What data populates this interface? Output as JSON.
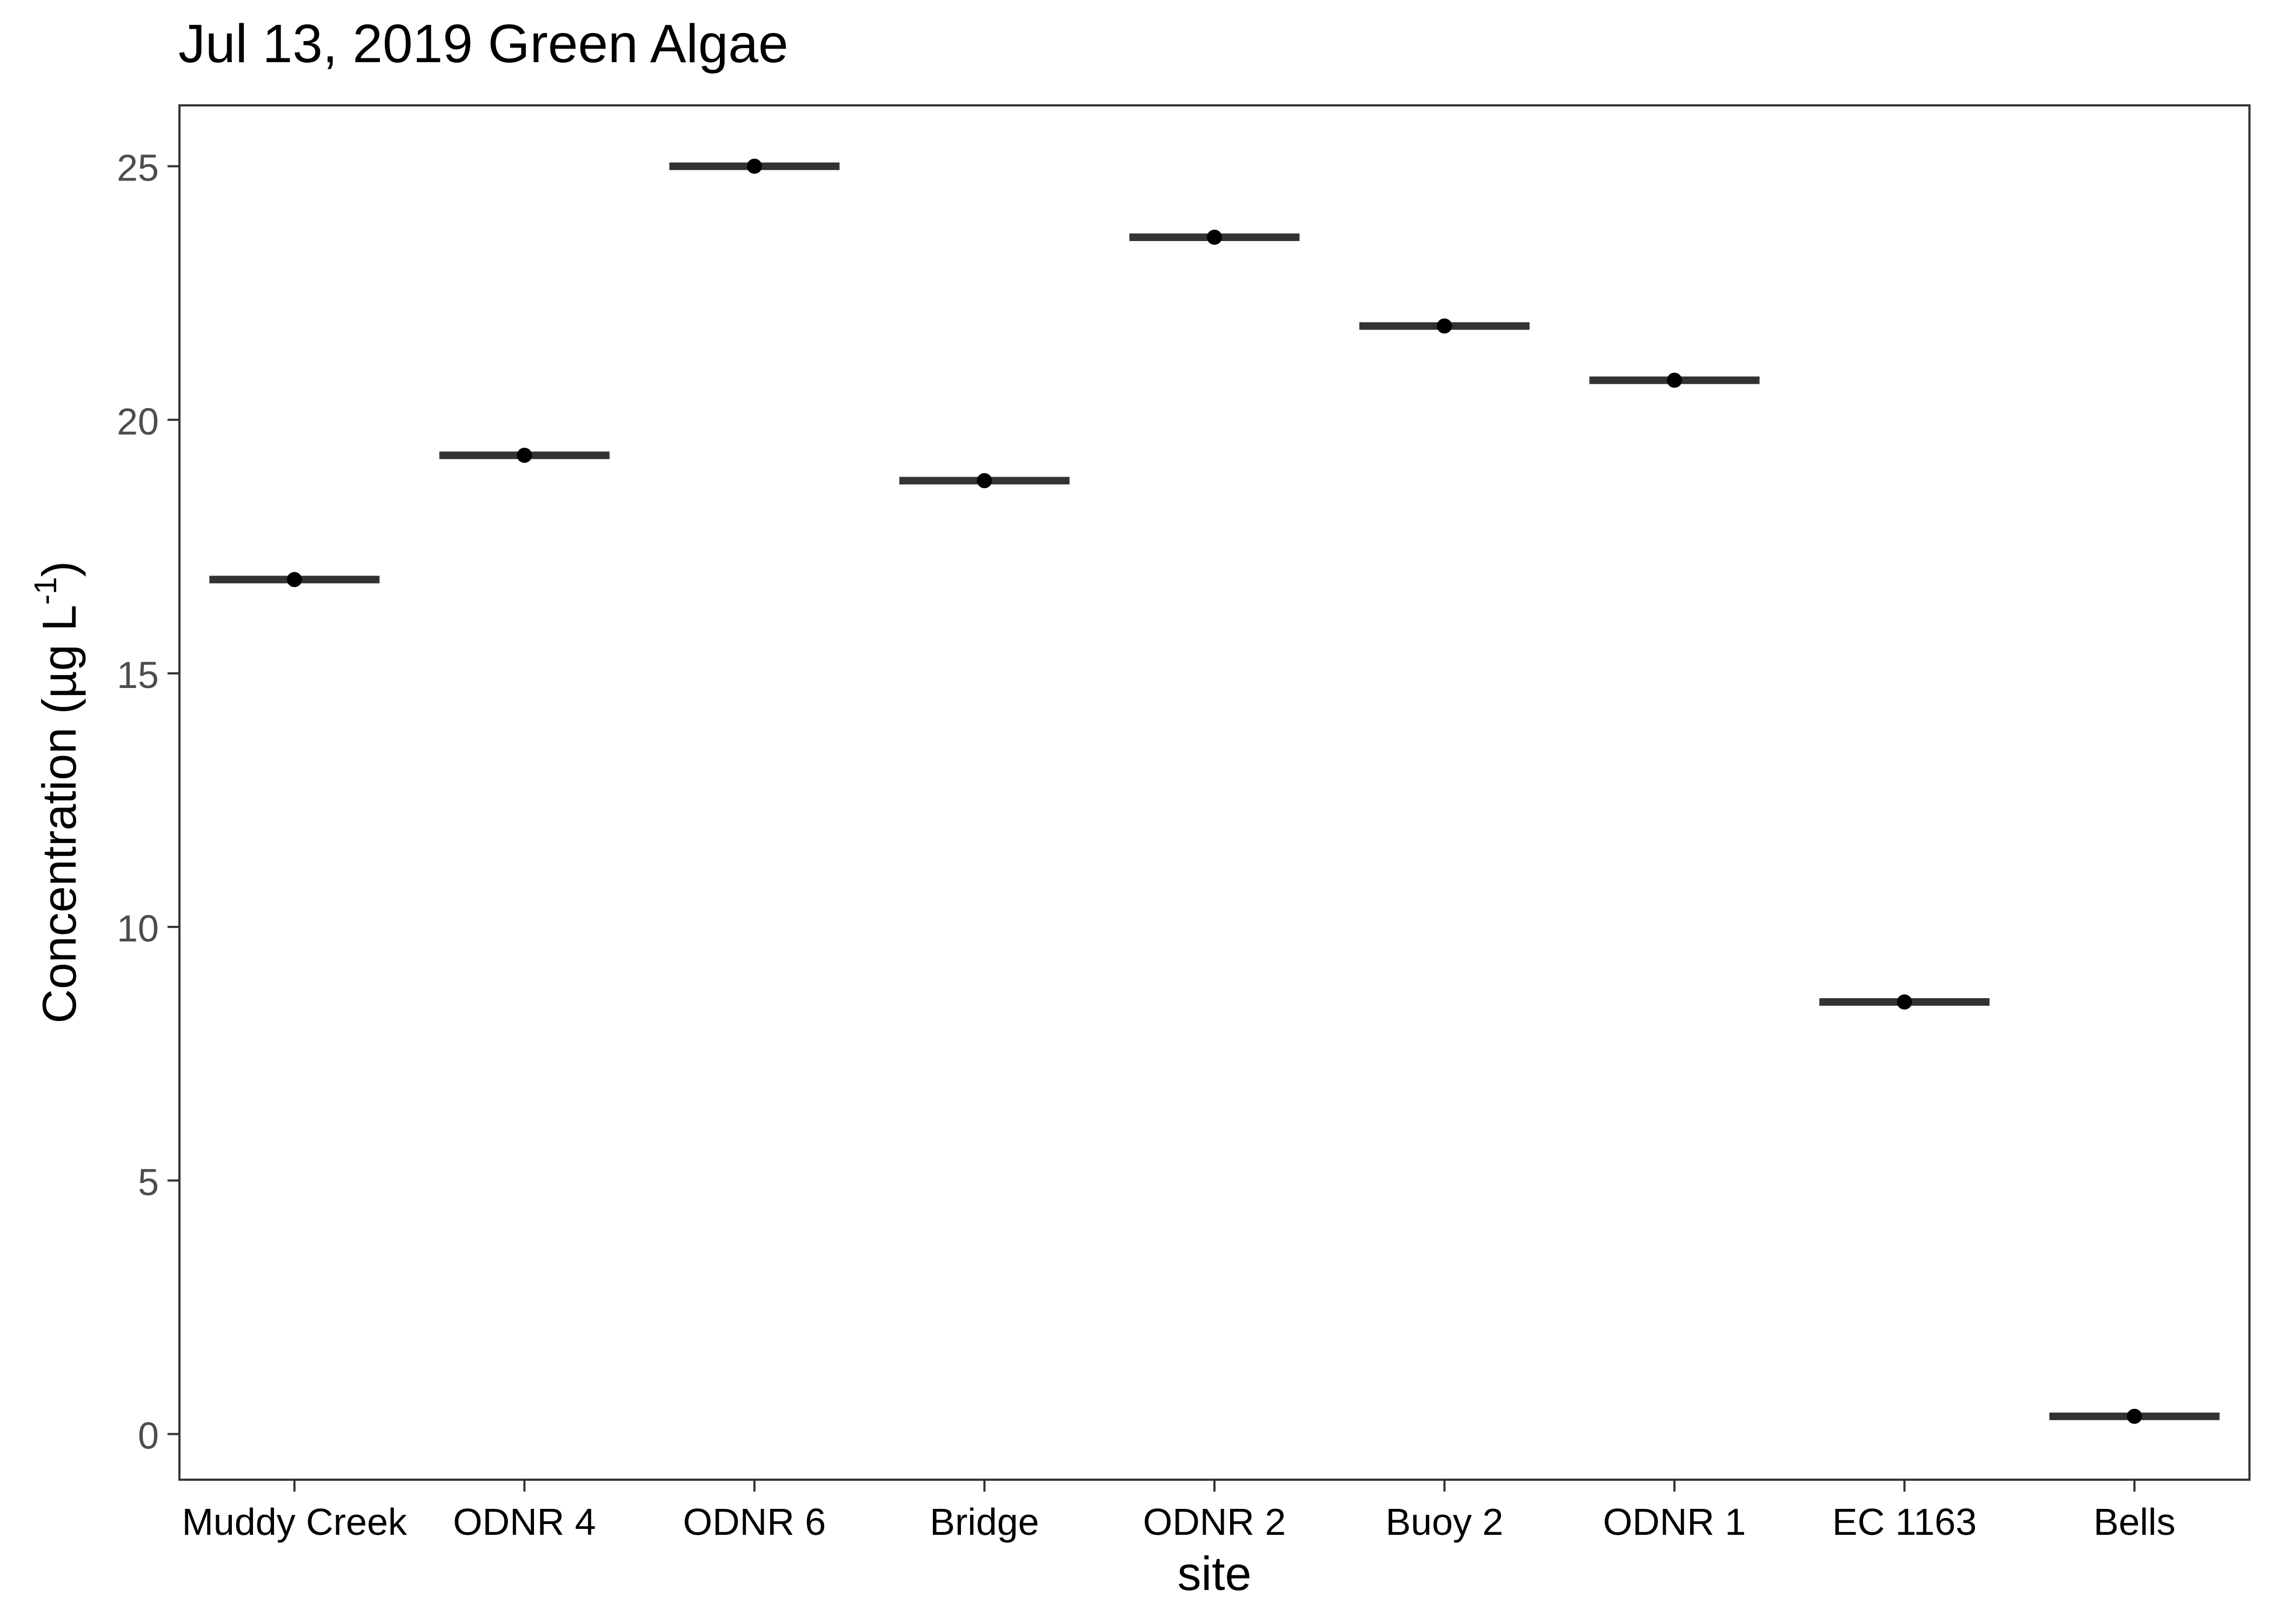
{
  "chart_data": {
    "type": "scatter",
    "title": "Jul 13, 2019 Green Algae",
    "xlabel": "site",
    "ylabel": "Concentration (µg L",
    "ylabel_superscript": "-1",
    "ylabel_suffix": ")",
    "categories": [
      "Muddy Creek",
      "ODNR 4",
      "ODNR 6",
      "Bridge",
      "ODNR 2",
      "Buoy 2",
      "ODNR 1",
      "EC 1163",
      "Bells"
    ],
    "values": [
      16.85,
      19.3,
      25.0,
      18.8,
      23.6,
      21.85,
      20.78,
      8.52,
      0.35
    ],
    "ylim": [
      -0.9,
      26.2
    ],
    "yticks": [
      0,
      5,
      10,
      15,
      20,
      25
    ],
    "ytick_labels": [
      "0",
      "5",
      "10",
      "15",
      "20",
      "25"
    ],
    "grid": false,
    "legend": "none",
    "colors": {
      "point": "#000000",
      "mean_bar": "#333333",
      "axis": "#333333",
      "tick_label": "#4d4d4d",
      "text": "#000000"
    }
  }
}
